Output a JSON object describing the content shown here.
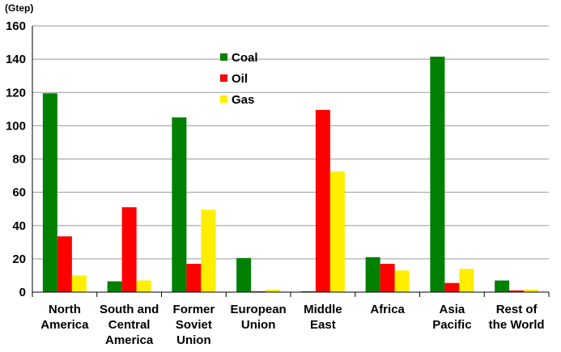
{
  "chart_data": {
    "type": "bar",
    "unit_label": "(Gtep)",
    "title": "",
    "xlabel": "",
    "ylabel": "",
    "ylim": [
      0,
      160
    ],
    "yticks": [
      0,
      20,
      40,
      60,
      80,
      100,
      120,
      140,
      160
    ],
    "grid": true,
    "legend_position": "top-center",
    "categories": [
      [
        "North",
        "America"
      ],
      [
        "South and",
        "Central",
        "America"
      ],
      [
        "Former",
        "Soviet",
        "Union"
      ],
      [
        "European",
        "Union"
      ],
      [
        "Middle",
        "East"
      ],
      [
        "Africa"
      ],
      [
        "Asia",
        "Pacific"
      ],
      [
        "Rest of",
        "the World"
      ]
    ],
    "series": [
      {
        "name": "Coal",
        "color": "#008000",
        "values": [
          119.5,
          6.5,
          105,
          20.5,
          0.5,
          21,
          141.5,
          7
        ]
      },
      {
        "name": "Oil",
        "color": "#ff0000",
        "values": [
          33.5,
          51,
          17,
          0.5,
          109.5,
          17,
          5.5,
          1
        ]
      },
      {
        "name": "Gas",
        "color": "#ffee00",
        "values": [
          10,
          7,
          49.5,
          1.5,
          72.5,
          13,
          14,
          1.5
        ]
      }
    ]
  }
}
